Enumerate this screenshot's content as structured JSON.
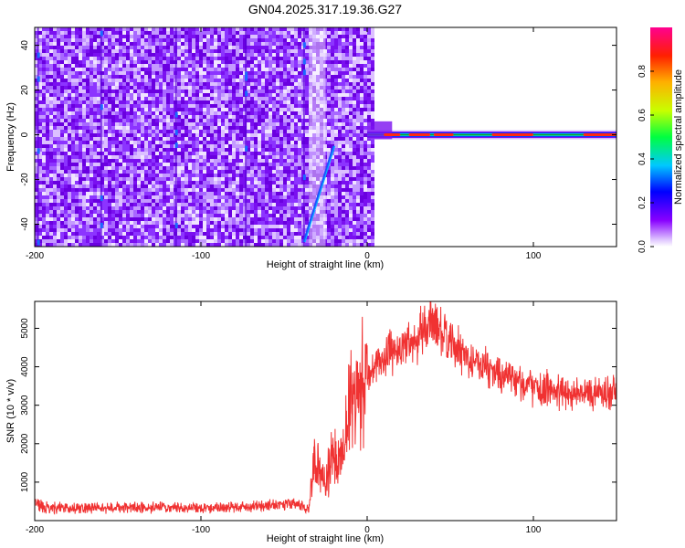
{
  "title": "GN04.2025.317.19.36.G27",
  "chart_data": [
    {
      "type": "heatmap",
      "xlabel": "Height of straight line (km)",
      "ylabel": "Frequency (Hz)",
      "xlim": [
        -200,
        150
      ],
      "ylim": [
        -50,
        48
      ],
      "xticks": [
        -200,
        -100,
        0,
        100
      ],
      "yticks": [
        -40,
        -20,
        0,
        20,
        40
      ],
      "colorbar": {
        "label": "Normalized spectral amplitude",
        "range": [
          0,
          1
        ],
        "ticks": [
          0.0,
          0.2,
          0.4,
          0.6,
          0.8
        ]
      },
      "features": {
        "noise_region_x": [
          -200,
          3
        ],
        "carrier_frequency_hz": 0,
        "carrier_x_range": [
          0,
          150
        ],
        "diagonal_trace": {
          "x_start": -38,
          "freq_start": -48,
          "x_end": -20,
          "freq_end": -5
        },
        "vertical_streaks_x": [
          -198,
          -160,
          -115,
          -73,
          -38
        ]
      }
    },
    {
      "type": "line",
      "xlabel": "Height of straight line (km)",
      "ylabel": "SNR (10 * v/v)",
      "xlim": [
        -200,
        150
      ],
      "ylim": [
        0,
        5700
      ],
      "xticks": [
        -200,
        -100,
        0,
        100
      ],
      "yticks": [
        1000,
        2000,
        3000,
        4000,
        5000
      ],
      "color": "#f03232",
      "profile": {
        "x": [
          -200,
          -195,
          -180,
          -160,
          -140,
          -120,
          -100,
          -80,
          -60,
          -45,
          -35,
          -32,
          -28,
          -25,
          -22,
          -18,
          -15,
          -10,
          -5,
          0,
          5,
          10,
          15,
          20,
          25,
          30,
          35,
          40,
          45,
          50,
          60,
          70,
          80,
          90,
          100,
          110,
          120,
          130,
          140,
          150
        ],
        "y": [
          480,
          340,
          330,
          340,
          330,
          340,
          330,
          350,
          400,
          450,
          300,
          1500,
          1200,
          800,
          1700,
          1500,
          2000,
          2900,
          3200,
          3700,
          4000,
          4200,
          4400,
          4500,
          4650,
          4750,
          4950,
          5150,
          4900,
          4600,
          4250,
          4050,
          3800,
          3600,
          3450,
          3400,
          3300,
          3350,
          3300,
          3350
        ]
      }
    }
  ]
}
